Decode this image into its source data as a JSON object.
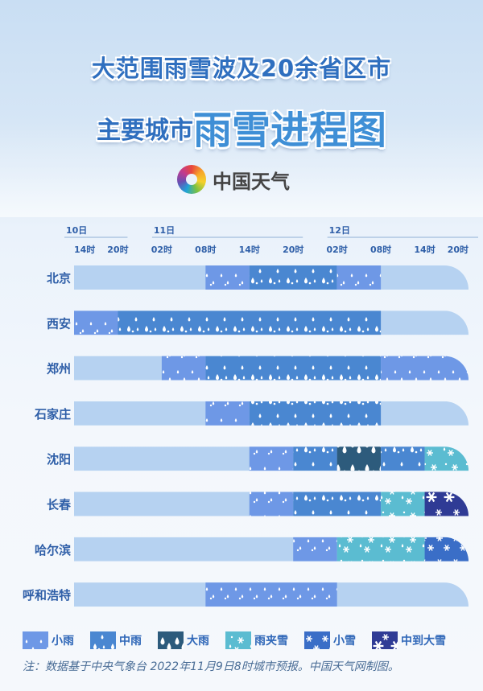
{
  "header": {
    "title_line1": "大范围雨雪波及20余省区市",
    "title_line2_a": "主要城市",
    "title_line2_b": "雨雪进程图",
    "logo_text": "中国天气"
  },
  "colors": {
    "empty": "#b6d2f1",
    "小雨": "#6e98e6",
    "中雨": "#4a87d1",
    "大雨": "#2d5b7c",
    "雨夹雪": "#5bbcd1",
    "小雪": "#3a6ec7",
    "中到大雪": "#2f3b95",
    "title": "#2f6fbf",
    "label": "#2f5fa8"
  },
  "chart_data": {
    "type": "gantt",
    "time_points": [
      "10日14时",
      "10日20时",
      "11日02时",
      "11日08时",
      "11日14时",
      "11日20时",
      "12日02时",
      "12日08时",
      "12日14时",
      "12日20时"
    ],
    "day_labels": [
      {
        "label": "10日",
        "from": "10日14时",
        "to": "10日20时"
      },
      {
        "label": "11日",
        "from": "11日02时",
        "to": "11日20时"
      },
      {
        "label": "12日",
        "from": "12日02时",
        "to": "12日20时"
      }
    ],
    "hour_labels": [
      "14时",
      "20时",
      "02时",
      "08时",
      "14时",
      "20时",
      "02时",
      "08时",
      "14时",
      "20时"
    ],
    "rows": [
      {
        "city": "北京",
        "segments": [
          {
            "type": "小雨",
            "start": "11日08时",
            "end": "11日14时"
          },
          {
            "type": "中雨",
            "start": "11日14时",
            "end": "12日02时"
          },
          {
            "type": "小雨",
            "start": "12日02时",
            "end": "12日08时"
          }
        ]
      },
      {
        "city": "西安",
        "segments": [
          {
            "type": "小雨",
            "start": "10日14时",
            "end": "10日20时"
          },
          {
            "type": "中雨",
            "start": "10日20时",
            "end": "12日08时"
          }
        ]
      },
      {
        "city": "郑州",
        "segments": [
          {
            "type": "小雨",
            "start": "11日02时",
            "end": "11日08时"
          },
          {
            "type": "中雨",
            "start": "11日08时",
            "end": "12日08时"
          },
          {
            "type": "小雨",
            "start": "12日08时",
            "end": "12日20时"
          }
        ]
      },
      {
        "city": "石家庄",
        "segments": [
          {
            "type": "小雨",
            "start": "11日08时",
            "end": "11日14时"
          },
          {
            "type": "中雨",
            "start": "11日14时",
            "end": "12日08时"
          }
        ]
      },
      {
        "city": "沈阳",
        "segments": [
          {
            "type": "小雨",
            "start": "11日14时",
            "end": "11日20时"
          },
          {
            "type": "中雨",
            "start": "11日20时",
            "end": "12日02时"
          },
          {
            "type": "大雨",
            "start": "12日02时",
            "end": "12日08时"
          },
          {
            "type": "中雨",
            "start": "12日08时",
            "end": "12日14时"
          },
          {
            "type": "雨夹雪",
            "start": "12日14时",
            "end": "12日20时"
          }
        ]
      },
      {
        "city": "长春",
        "segments": [
          {
            "type": "小雨",
            "start": "11日14时",
            "end": "11日20时"
          },
          {
            "type": "中雨",
            "start": "11日20时",
            "end": "12日08时"
          },
          {
            "type": "雨夹雪",
            "start": "12日08时",
            "end": "12日14时"
          },
          {
            "type": "中到大雪",
            "start": "12日14时",
            "end": "12日20时"
          }
        ]
      },
      {
        "city": "哈尔滨",
        "segments": [
          {
            "type": "小雨",
            "start": "11日20时",
            "end": "12日02时"
          },
          {
            "type": "雨夹雪",
            "start": "12日02时",
            "end": "12日14时"
          },
          {
            "type": "小雪",
            "start": "12日14时",
            "end": "12日20时"
          }
        ]
      },
      {
        "city": "呼和浩特",
        "segments": [
          {
            "type": "小雨",
            "start": "11日08时",
            "end": "12日02时"
          }
        ]
      }
    ],
    "legend": [
      "小雨",
      "中雨",
      "大雨",
      "雨夹雪",
      "小雪",
      "中到大雪"
    ]
  },
  "note": "注：数据基于中央气象台 2022年11月9日8时城市预报。中国天气网制图。"
}
